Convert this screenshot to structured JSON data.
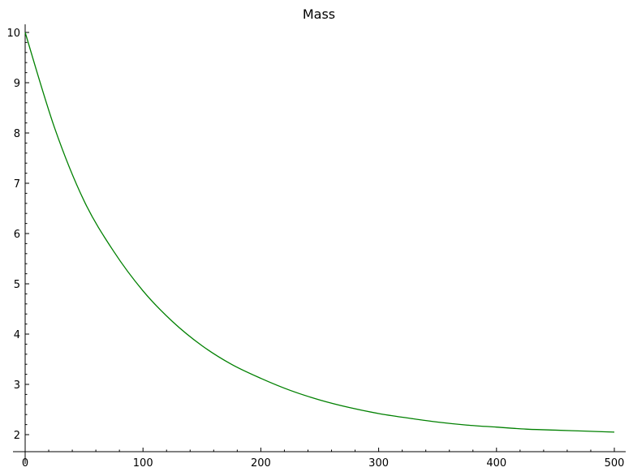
{
  "chart_data": {
    "type": "line",
    "title": "Mass",
    "xlabel": "",
    "ylabel": "",
    "xlim": [
      0,
      500
    ],
    "ylim": [
      2,
      10
    ],
    "x_ticks": [
      0,
      100,
      200,
      300,
      400,
      500
    ],
    "y_ticks": [
      2,
      3,
      4,
      5,
      6,
      7,
      8,
      9,
      10
    ],
    "grid": false,
    "line_color": "#008000",
    "series": [
      {
        "x": [
          0,
          25,
          50,
          75,
          100,
          125,
          150,
          175,
          200,
          225,
          250,
          275,
          300,
          325,
          350,
          375,
          400,
          425,
          450,
          475,
          500
        ],
        "values": [
          10.0,
          8.1,
          6.65,
          5.65,
          4.86,
          4.25,
          3.77,
          3.4,
          3.12,
          2.88,
          2.69,
          2.54,
          2.42,
          2.33,
          2.25,
          2.19,
          2.15,
          2.11,
          2.09,
          2.07,
          2.05
        ]
      }
    ]
  }
}
